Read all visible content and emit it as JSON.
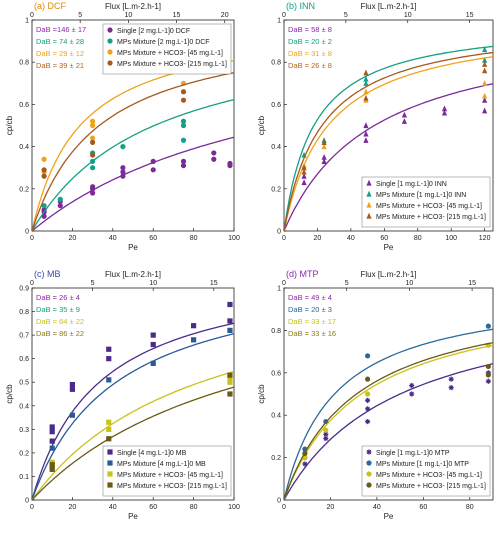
{
  "chart_data": [
    {
      "type": "scatter",
      "id": "a",
      "title": "(a) DCF",
      "title_color": "#e08a00",
      "xlabel": "Pe",
      "ylabel": "cp/cb",
      "xlim": [
        0,
        100
      ],
      "xticks": [
        0,
        20,
        40,
        60,
        80,
        100
      ],
      "ylim": [
        0,
        1
      ],
      "yticks": [
        0,
        0.2,
        0.4,
        0.6,
        0.8,
        1
      ],
      "top_axis": {
        "label": "Flux [L.m-2.h-1]",
        "ticks": [
          0,
          5,
          10,
          15,
          20
        ],
        "pe_per_unit": 4.77
      },
      "legend_position": "top-right",
      "da_labels": [
        {
          "text": "DaB =146 ± 17",
          "color": "#8b2aa8"
        },
        {
          "text": "DaB = 74 ± 28",
          "color": "#14a083"
        },
        {
          "text": "DaB = 29 ± 12",
          "color": "#f0a31a"
        },
        {
          "text": "DaB = 39 ± 21",
          "color": "#b0651e"
        }
      ],
      "series": [
        {
          "name": "Single [2 mg.L-1]0 DCF",
          "color": "#7b2a98",
          "marker": "circle",
          "k": 0.008,
          "points": [
            [
              6,
              0.07
            ],
            [
              6,
              0.1
            ],
            [
              6,
              0.09
            ],
            [
              14,
              0.12
            ],
            [
              14,
              0.14
            ],
            [
              30,
              0.18
            ],
            [
              30,
              0.21
            ],
            [
              30,
              0.2
            ],
            [
              45,
              0.26
            ],
            [
              45,
              0.28
            ],
            [
              45,
              0.3
            ],
            [
              60,
              0.29
            ],
            [
              60,
              0.33
            ],
            [
              75,
              0.31
            ],
            [
              75,
              0.33
            ],
            [
              90,
              0.34
            ],
            [
              90,
              0.37
            ],
            [
              98,
              0.31
            ],
            [
              98,
              0.32
            ]
          ]
        },
        {
          "name": "MPs Mixture [2 mg.L-1]0 DCF",
          "color": "#14a083",
          "marker": "circle",
          "k": 0.0165,
          "points": [
            [
              6,
              0.12
            ],
            [
              14,
              0.15
            ],
            [
              30,
              0.3
            ],
            [
              30,
              0.33
            ],
            [
              30,
              0.37
            ],
            [
              45,
              0.4
            ],
            [
              75,
              0.43
            ],
            [
              75,
              0.5
            ],
            [
              75,
              0.52
            ]
          ]
        },
        {
          "name": "MPs Mixture + HCO3- [45 mg.L-1]",
          "color": "#f0a31a",
          "marker": "circle",
          "k": 0.042,
          "points": [
            [
              6,
              0.28
            ],
            [
              6,
              0.34
            ],
            [
              30,
              0.44
            ],
            [
              30,
              0.52
            ],
            [
              30,
              0.5
            ],
            [
              75,
              0.7
            ]
          ]
        },
        {
          "name": "MPs Mixture + HCO3- [215 mg.L-1]",
          "color": "#a4591e",
          "marker": "circle",
          "k": 0.03,
          "points": [
            [
              6,
              0.26
            ],
            [
              6,
              0.29
            ],
            [
              30,
              0.36
            ],
            [
              30,
              0.42
            ],
            [
              75,
              0.62
            ],
            [
              75,
              0.66
            ]
          ]
        }
      ]
    },
    {
      "type": "scatter",
      "id": "b",
      "title": "(b) INN",
      "title_color": "#14a083",
      "xlabel": "Pe",
      "ylabel": "cp/cb",
      "xlim": [
        0,
        125
      ],
      "xticks": [
        0,
        20,
        40,
        60,
        80,
        100,
        120
      ],
      "ylim": [
        0,
        1
      ],
      "yticks": [
        0,
        0.2,
        0.4,
        0.6,
        0.8,
        1
      ],
      "top_axis": {
        "label": "Flux [L.m-2.h-1]",
        "ticks": [
          0,
          5,
          10,
          15
        ],
        "pe_per_unit": 7.4
      },
      "legend_position": "bottom-right",
      "da_labels": [
        {
          "text": "DaB = 58 ± 8",
          "color": "#8b2aa8"
        },
        {
          "text": "DaB = 20 ± 2",
          "color": "#14a083"
        },
        {
          "text": "DaB = 31 ± 8",
          "color": "#f0a31a"
        },
        {
          "text": "DaB = 26 ± 8",
          "color": "#b0651e"
        }
      ],
      "series": [
        {
          "name": "Single [1 mg.L-1]0 INN",
          "color": "#7b2a98",
          "marker": "triangle",
          "k": 0.0185,
          "points": [
            [
              12,
              0.23
            ],
            [
              12,
              0.26
            ],
            [
              24,
              0.33
            ],
            [
              24,
              0.35
            ],
            [
              49,
              0.43
            ],
            [
              49,
              0.46
            ],
            [
              49,
              0.5
            ],
            [
              72,
              0.52
            ],
            [
              72,
              0.55
            ],
            [
              96,
              0.56
            ],
            [
              96,
              0.58
            ],
            [
              120,
              0.57
            ],
            [
              120,
              0.62
            ]
          ]
        },
        {
          "name": "MPs Mixture [1 mg.L-1]0 INN",
          "color": "#14a083",
          "marker": "triangle",
          "k": 0.056,
          "points": [
            [
              12,
              0.36
            ],
            [
              24,
              0.43
            ],
            [
              49,
              0.7
            ],
            [
              49,
              0.72
            ],
            [
              120,
              0.81
            ],
            [
              120,
              0.86
            ]
          ]
        },
        {
          "name": "MPs Mixture + HCO3- [45 mg.L-1]",
          "color": "#f0a31a",
          "marker": "triangle",
          "k": 0.038,
          "points": [
            [
              12,
              0.31
            ],
            [
              24,
              0.4
            ],
            [
              49,
              0.62
            ],
            [
              49,
              0.66
            ],
            [
              120,
              0.64
            ],
            [
              120,
              0.7
            ]
          ]
        },
        {
          "name": "MPs Mixture + HCO3- [215 mg.L-1]",
          "color": "#a4591e",
          "marker": "triangle",
          "k": 0.044,
          "points": [
            [
              12,
              0.28
            ],
            [
              12,
              0.3
            ],
            [
              24,
              0.42
            ],
            [
              49,
              0.63
            ],
            [
              49,
              0.75
            ],
            [
              120,
              0.76
            ],
            [
              120,
              0.79
            ]
          ]
        }
      ]
    },
    {
      "type": "scatter",
      "id": "c",
      "title": "(c) MB",
      "title_color": "#3a4aa8",
      "xlabel": "Pe",
      "ylabel": "cp/cb",
      "xlim": [
        0,
        100
      ],
      "xticks": [
        0,
        20,
        40,
        60,
        80,
        100
      ],
      "ylim": [
        0,
        0.9
      ],
      "yticks": [
        0,
        0.1,
        0.2,
        0.3,
        0.4,
        0.5,
        0.6,
        0.7,
        0.8,
        0.9
      ],
      "top_axis": {
        "label": "Flux [L.m-2.h-1]",
        "ticks": [
          0,
          5,
          10,
          15
        ],
        "pe_per_unit": 6.0
      },
      "legend_position": "bottom-right",
      "da_labels": [
        {
          "text": "DaB = 26 ± 4",
          "color": "#8b2aa8"
        },
        {
          "text": "DaB = 35 ± 9",
          "color": "#14a083"
        },
        {
          "text": "DaB = 64 ± 22",
          "color": "#c8c21a"
        },
        {
          "text": "DaB = 86 ± 22",
          "color": "#8a7a1e"
        }
      ],
      "series": [
        {
          "name": "Single [4 mg.L-1]0 MB",
          "color": "#4b2a8a",
          "marker": "square",
          "k": 0.03,
          "points": [
            [
              10,
              0.25
            ],
            [
              10,
              0.29
            ],
            [
              10,
              0.31
            ],
            [
              20,
              0.47
            ],
            [
              20,
              0.49
            ],
            [
              38,
              0.6
            ],
            [
              38,
              0.64
            ],
            [
              60,
              0.66
            ],
            [
              60,
              0.7
            ],
            [
              80,
              0.74
            ],
            [
              98,
              0.76
            ],
            [
              98,
              0.83
            ]
          ]
        },
        {
          "name": "MPs Mixture [4 mg.L-1]0 MB",
          "color": "#2a5a9a",
          "marker": "square",
          "k": 0.024,
          "points": [
            [
              10,
              0.22
            ],
            [
              20,
              0.36
            ],
            [
              38,
              0.51
            ],
            [
              60,
              0.58
            ],
            [
              80,
              0.68
            ],
            [
              98,
              0.72
            ]
          ]
        },
        {
          "name": "MPs Mixture + HCO3- [45 mg.L-1]",
          "color": "#c8c21a",
          "marker": "square",
          "k": 0.012,
          "points": [
            [
              10,
              0.14
            ],
            [
              10,
              0.16
            ],
            [
              38,
              0.3
            ],
            [
              38,
              0.33
            ],
            [
              98,
              0.5
            ],
            [
              98,
              0.52
            ]
          ]
        },
        {
          "name": "MPs Mixture + HCO3- [215 mg.L-1]",
          "color": "#6a5a14",
          "marker": "square",
          "k": 0.0092,
          "points": [
            [
              10,
              0.13
            ],
            [
              10,
              0.15
            ],
            [
              38,
              0.26
            ],
            [
              98,
              0.45
            ],
            [
              98,
              0.53
            ]
          ]
        }
      ]
    },
    {
      "type": "scatter",
      "id": "d",
      "title": "(d) MTP",
      "title_color": "#8b2aa8",
      "xlabel": "Pe",
      "ylabel": "cp/cb",
      "xlim": [
        0,
        90
      ],
      "xticks": [
        0,
        20,
        40,
        60,
        80
      ],
      "ylim": [
        0,
        1
      ],
      "yticks": [
        0,
        0.2,
        0.4,
        0.6,
        0.8,
        1
      ],
      "top_axis": {
        "label": "Flux [L.m-2.h-1]",
        "ticks": [
          0,
          5,
          10,
          15
        ],
        "pe_per_unit": 5.4
      },
      "legend_position": "bottom-right",
      "da_labels": [
        {
          "text": "DaB = 49 ± 4",
          "color": "#8b2aa8"
        },
        {
          "text": "DaB = 20 ± 3",
          "color": "#2a6a9a"
        },
        {
          "text": "DaB = 33 ± 17",
          "color": "#c8c21a"
        },
        {
          "text": "DaB = 33 ± 16",
          "color": "#8a7a1e"
        }
      ],
      "series": [
        {
          "name": "Single [1 mg.L-1]0 MTP",
          "color": "#4b2a8a",
          "marker": "asterisk",
          "k": 0.02,
          "points": [
            [
              9,
              0.17
            ],
            [
              9,
              0.2
            ],
            [
              18,
              0.29
            ],
            [
              18,
              0.31
            ],
            [
              36,
              0.37
            ],
            [
              36,
              0.43
            ],
            [
              36,
              0.47
            ],
            [
              55,
              0.5
            ],
            [
              55,
              0.54
            ],
            [
              72,
              0.53
            ],
            [
              72,
              0.57
            ],
            [
              88,
              0.56
            ],
            [
              88,
              0.6
            ]
          ]
        },
        {
          "name": "MPs Mixture [1 mg.L-1]0 MTP",
          "color": "#2a6a9a",
          "marker": "circle",
          "k": 0.046,
          "points": [
            [
              9,
              0.24
            ],
            [
              18,
              0.37
            ],
            [
              36,
              0.68
            ],
            [
              88,
              0.82
            ]
          ]
        },
        {
          "name": "MPs Mixture + HCO3- [45 mg.L-1]",
          "color": "#c8c21a",
          "marker": "circle",
          "k": 0.03,
          "points": [
            [
              9,
              0.2
            ],
            [
              18,
              0.33
            ],
            [
              36,
              0.5
            ],
            [
              88,
              0.73
            ]
          ]
        },
        {
          "name": "MPs Mixture + HCO3- [215 mg.L-1]",
          "color": "#6a5a14",
          "marker": "circle",
          "k": 0.032,
          "points": [
            [
              9,
              0.22
            ],
            [
              36,
              0.57
            ],
            [
              88,
              0.59
            ],
            [
              88,
              0.63
            ]
          ]
        }
      ]
    }
  ]
}
